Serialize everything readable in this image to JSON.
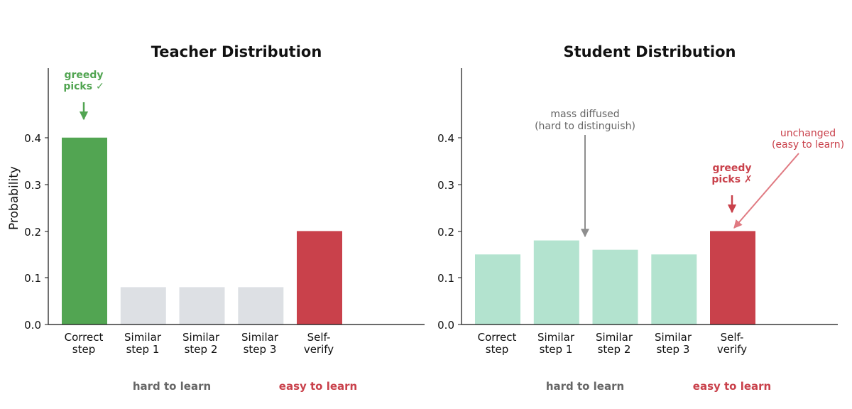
{
  "colors": {
    "green": "#52a552",
    "gray_bar": "#dde0e4",
    "red": "#c9414b",
    "mint": "#b3e3cf",
    "gray_text": "#666666",
    "ann_gray": "#8e8e8e",
    "light_red": "#e07a82"
  },
  "chart_data": [
    {
      "type": "bar",
      "title": "Teacher Distribution",
      "ylabel": "Probability",
      "xlabel": "",
      "ylim": [
        0,
        0.55
      ],
      "yticks": [
        "0.0",
        "0.1",
        "0.2",
        "0.3",
        "0.4"
      ],
      "categories": [
        {
          "line1": "Correct",
          "line2": "step"
        },
        {
          "line1": "Similar",
          "line2": "step 1"
        },
        {
          "line1": "Similar",
          "line2": "step 2"
        },
        {
          "line1": "Similar",
          "line2": "step 3"
        },
        {
          "line1": "Self-",
          "line2": "verify"
        }
      ],
      "values": [
        0.4,
        0.08,
        0.08,
        0.08,
        0.2
      ],
      "bar_colors": [
        "green",
        "gray_bar",
        "gray_bar",
        "gray_bar",
        "red"
      ],
      "group_labels": {
        "hard": "hard to learn",
        "easy": "easy to learn"
      },
      "annotations": {
        "greedy": {
          "line1": "greedy",
          "line2": "picks ✓"
        }
      }
    },
    {
      "type": "bar",
      "title": "Student Distribution",
      "ylabel": "",
      "xlabel": "",
      "ylim": [
        0,
        0.55
      ],
      "yticks": [
        "0.0",
        "0.1",
        "0.2",
        "0.3",
        "0.4"
      ],
      "categories": [
        {
          "line1": "Correct",
          "line2": "step"
        },
        {
          "line1": "Similar",
          "line2": "step 1"
        },
        {
          "line1": "Similar",
          "line2": "step 2"
        },
        {
          "line1": "Similar",
          "line2": "step 3"
        },
        {
          "line1": "Self-",
          "line2": "verify"
        }
      ],
      "values": [
        0.15,
        0.18,
        0.16,
        0.15,
        0.2
      ],
      "bar_colors": [
        "mint",
        "mint",
        "mint",
        "mint",
        "red"
      ],
      "group_labels": {
        "hard": "hard to learn",
        "easy": "easy to learn"
      },
      "annotations": {
        "diffused": {
          "line1": "mass diffused",
          "line2": "(hard to distinguish)"
        },
        "unchanged": {
          "line1": "unchanged",
          "line2": "(easy to learn)"
        },
        "greedy": {
          "line1": "greedy",
          "line2": "picks ✗"
        }
      }
    }
  ]
}
